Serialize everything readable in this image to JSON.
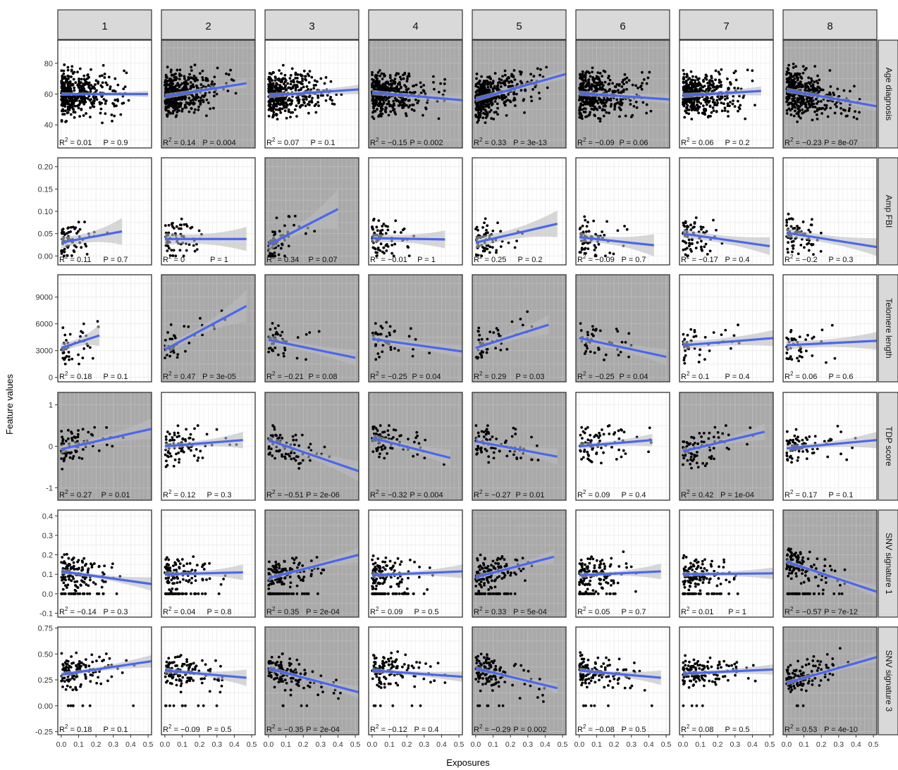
{
  "chart_data": {
    "type": "scatter",
    "facet_layout": "grid",
    "xlabel": "Exposures",
    "ylabel": "Feature values",
    "columns": [
      "1",
      "2",
      "3",
      "4",
      "5",
      "6",
      "7",
      "8"
    ],
    "x_ticks": [
      0.0,
      0.1,
      0.2,
      0.3,
      0.4,
      0.5
    ],
    "x_tick_labels": [
      "0.0",
      "0.1",
      "0.2",
      "0.3",
      "0.4",
      "0.5"
    ],
    "xlim": [
      -0.02,
      0.52
    ],
    "colors": {
      "fit_line": "#4a67f0",
      "ci_band": "#bdbdbd",
      "points": "#000000",
      "shaded_panel": "#a9a9a9",
      "strip": "#d9d9d9"
    },
    "rows": [
      {
        "label": "Age diagnosis",
        "ylim": [
          25,
          95
        ],
        "y_ticks": [
          40,
          60,
          80
        ],
        "y_tick_labels": [
          "40",
          "60",
          "80"
        ],
        "y_range": [
          30,
          90
        ],
        "y_mu": 60,
        "y_sd": 12,
        "n": 400,
        "x_concentration": 0.12,
        "zero_fraction": 0,
        "panels": [
          {
            "r2": "0.01",
            "p": "0.9",
            "shaded": false,
            "x_max": 0.5,
            "fit": [
              60,
              60
            ],
            "ci": [
              1,
              2
            ]
          },
          {
            "r2": "0.14",
            "p": "0.004",
            "shaded": true,
            "x_max": 0.47,
            "fit": [
              58.5,
              67
            ],
            "ci": [
              1.5,
              3
            ]
          },
          {
            "r2": "0.07",
            "p": "0.1",
            "shaded": false,
            "x_max": 0.52,
            "fit": [
              59,
              63
            ],
            "ci": [
              1.5,
              3
            ]
          },
          {
            "r2": "−0.15",
            "p": "0.002",
            "shaded": true,
            "x_max": 0.52,
            "fit": [
              61,
              56
            ],
            "ci": [
              1.5,
              3
            ]
          },
          {
            "r2": "0.33",
            "p": "3e-13",
            "shaded": true,
            "x_max": 0.52,
            "fit": [
              56.5,
              73
            ],
            "ci": [
              1.5,
              3
            ]
          },
          {
            "r2": "−0.09",
            "p": "0.06",
            "shaded": true,
            "x_max": 0.52,
            "fit": [
              60.5,
              56.5
            ],
            "ci": [
              1.5,
              3
            ]
          },
          {
            "r2": "0.06",
            "p": "0.2",
            "shaded": false,
            "x_max": 0.45,
            "fit": [
              59,
              62
            ],
            "ci": [
              1.5,
              3
            ]
          },
          {
            "r2": "−0.23",
            "p": "8e-07",
            "shaded": true,
            "x_max": 0.52,
            "fit": [
              62.5,
              52
            ],
            "ci": [
              1.5,
              3
            ]
          }
        ]
      },
      {
        "label": "Amp FBI",
        "ylim": [
          -0.02,
          0.22
        ],
        "y_ticks": [
          0,
          0.05,
          0.1,
          0.15,
          0.2
        ],
        "y_tick_labels": [
          "0.00",
          "0.05",
          "0.10",
          "0.15",
          "0.20"
        ],
        "y_range": [
          0,
          0.2
        ],
        "y_mu": 0.02,
        "y_sd": 0.035,
        "n": 70,
        "x_concentration": 0.08,
        "zero_fraction": 0,
        "panels": [
          {
            "r2": "0.11",
            "p": "0.7",
            "shaded": false,
            "x_max": 0.35,
            "fit": [
              0.03,
              0.055
            ],
            "ci": [
              0.01,
              0.03
            ]
          },
          {
            "r2": "0",
            "p": "1",
            "shaded": false,
            "x_max": 0.47,
            "fit": [
              0.038,
              0.038
            ],
            "ci": [
              0.01,
              0.027
            ]
          },
          {
            "r2": "0.34",
            "p": "0.07",
            "shaded": true,
            "x_max": 0.4,
            "fit": [
              0.025,
              0.105
            ],
            "ci": [
              0.01,
              0.045
            ]
          },
          {
            "r2": "−0.01",
            "p": "1",
            "shaded": false,
            "x_max": 0.42,
            "fit": [
              0.04,
              0.037
            ],
            "ci": [
              0.008,
              0.02
            ]
          },
          {
            "r2": "0.25",
            "p": "0.2",
            "shaded": false,
            "x_max": 0.47,
            "fit": [
              0.03,
              0.072
            ],
            "ci": [
              0.01,
              0.03
            ]
          },
          {
            "r2": "−0.09",
            "p": "0.7",
            "shaded": false,
            "x_max": 0.43,
            "fit": [
              0.042,
              0.024
            ],
            "ci": [
              0.008,
              0.025
            ]
          },
          {
            "r2": "−0.17",
            "p": "0.4",
            "shaded": false,
            "x_max": 0.5,
            "fit": [
              0.05,
              0.022
            ],
            "ci": [
              0.008,
              0.02
            ]
          },
          {
            "r2": "−0.2",
            "p": "0.3",
            "shaded": false,
            "x_max": 0.52,
            "fit": [
              0.052,
              0.02
            ],
            "ci": [
              0.008,
              0.02
            ]
          }
        ]
      },
      {
        "label": "Telomere length",
        "ylim": [
          -500,
          11500
        ],
        "y_ticks": [
          0,
          3000,
          6000,
          9000
        ],
        "y_tick_labels": [
          "0",
          "3000",
          "6000",
          "9000"
        ],
        "y_range": [
          1500,
          11000
        ],
        "y_mu": 3500,
        "y_sd": 1800,
        "n": 45,
        "x_concentration": 0.1,
        "zero_fraction": 0,
        "panels": [
          {
            "r2": "0.18",
            "p": "0.1",
            "shaded": false,
            "x_max": 0.22,
            "fit": [
              3300,
              4700
            ],
            "ci": [
              400,
              1200
            ]
          },
          {
            "r2": "0.47",
            "p": "3e-05",
            "shaded": true,
            "x_max": 0.47,
            "fit": [
              3100,
              8000
            ],
            "ci": [
              400,
              1800
            ]
          },
          {
            "r2": "−0.21",
            "p": "0.08",
            "shaded": true,
            "x_max": 0.5,
            "fit": [
              4200,
              2200
            ],
            "ci": [
              400,
              900
            ]
          },
          {
            "r2": "−0.25",
            "p": "0.04",
            "shaded": true,
            "x_max": 0.52,
            "fit": [
              4300,
              2900
            ],
            "ci": [
              400,
              700
            ]
          },
          {
            "r2": "0.29",
            "p": "0.03",
            "shaded": true,
            "x_max": 0.42,
            "fit": [
              3300,
              5900
            ],
            "ci": [
              400,
              1100
            ]
          },
          {
            "r2": "−0.25",
            "p": "0.04",
            "shaded": true,
            "x_max": 0.5,
            "fit": [
              4400,
              2300
            ],
            "ci": [
              400,
              900
            ]
          },
          {
            "r2": "0.1",
            "p": "0.4",
            "shaded": false,
            "x_max": 0.52,
            "fit": [
              3600,
              4400
            ],
            "ci": [
              400,
              900
            ]
          },
          {
            "r2": "0.06",
            "p": "0.6",
            "shaded": false,
            "x_max": 0.52,
            "fit": [
              3600,
              4100
            ],
            "ci": [
              400,
              1000
            ]
          }
        ]
      },
      {
        "label": "TDP score",
        "ylim": [
          -1.3,
          1.3
        ],
        "y_ticks": [
          -1,
          0,
          1
        ],
        "y_tick_labels": [
          "-1",
          "0",
          "1"
        ],
        "y_range": [
          -1.1,
          0.5
        ],
        "y_mu": 0.05,
        "y_sd": 0.35,
        "n": 80,
        "x_concentration": 0.12,
        "zero_fraction": 0,
        "panels": [
          {
            "r2": "0.27",
            "p": "0.01",
            "shaded": true,
            "x_max": 0.52,
            "fit": [
              -0.07,
              0.42
            ],
            "ci": [
              0.08,
              0.25
            ]
          },
          {
            "r2": "0.12",
            "p": "0.3",
            "shaded": false,
            "x_max": 0.45,
            "fit": [
              0.0,
              0.15
            ],
            "ci": [
              0.06,
              0.2
            ]
          },
          {
            "r2": "−0.51",
            "p": "2e-06",
            "shaded": true,
            "x_max": 0.52,
            "fit": [
              0.15,
              -0.6
            ],
            "ci": [
              0.08,
              0.25
            ]
          },
          {
            "r2": "−0.32",
            "p": "0.004",
            "shaded": true,
            "x_max": 0.45,
            "fit": [
              0.2,
              -0.28
            ],
            "ci": [
              0.08,
              0.2
            ]
          },
          {
            "r2": "−0.27",
            "p": "0.01",
            "shaded": true,
            "x_max": 0.47,
            "fit": [
              0.12,
              -0.25
            ],
            "ci": [
              0.06,
              0.2
            ]
          },
          {
            "r2": "0.09",
            "p": "0.4",
            "shaded": false,
            "x_max": 0.42,
            "fit": [
              0.0,
              0.15
            ],
            "ci": [
              0.06,
              0.15
            ]
          },
          {
            "r2": "0.42",
            "p": "1e-04",
            "shaded": true,
            "x_max": 0.47,
            "fit": [
              -0.12,
              0.35
            ],
            "ci": [
              0.06,
              0.2
            ]
          },
          {
            "r2": "0.17",
            "p": "0.1",
            "shaded": false,
            "x_max": 0.52,
            "fit": [
              -0.05,
              0.15
            ],
            "ci": [
              0.06,
              0.2
            ]
          }
        ]
      },
      {
        "label": "SNV signature 1",
        "ylim": [
          -0.12,
          0.43
        ],
        "y_ticks": [
          -0.1,
          0,
          0.1,
          0.2,
          0.3,
          0.4
        ],
        "y_tick_labels": [
          "-0.1",
          "0.0",
          "0.1",
          "0.2",
          "0.3",
          "0.4"
        ],
        "y_range": [
          0,
          0.3
        ],
        "y_mu": 0.1,
        "y_sd": 0.07,
        "n": 160,
        "x_concentration": 0.1,
        "zero_fraction": 0.25,
        "panels": [
          {
            "r2": "−0.14",
            "p": "0.3",
            "shaded": false,
            "x_max": 0.52,
            "fit": [
              0.115,
              0.05
            ],
            "ci": [
              0.01,
              0.035
            ]
          },
          {
            "r2": "0.04",
            "p": "0.8",
            "shaded": false,
            "x_max": 0.45,
            "fit": [
              0.1,
              0.11
            ],
            "ci": [
              0.01,
              0.04
            ]
          },
          {
            "r2": "0.35",
            "p": "2e-04",
            "shaded": true,
            "x_max": 0.52,
            "fit": [
              0.08,
              0.2
            ],
            "ci": [
              0.01,
              0.04
            ]
          },
          {
            "r2": "0.09",
            "p": "0.5",
            "shaded": false,
            "x_max": 0.52,
            "fit": [
              0.095,
              0.115
            ],
            "ci": [
              0.01,
              0.035
            ]
          },
          {
            "r2": "0.33",
            "p": "5e-04",
            "shaded": true,
            "x_max": 0.45,
            "fit": [
              0.085,
              0.19
            ],
            "ci": [
              0.01,
              0.035
            ]
          },
          {
            "r2": "0.05",
            "p": "0.7",
            "shaded": false,
            "x_max": 0.47,
            "fit": [
              0.095,
              0.115
            ],
            "ci": [
              0.01,
              0.04
            ]
          },
          {
            "r2": "0.01",
            "p": "1",
            "shaded": false,
            "x_max": 0.52,
            "fit": [
              0.1,
              0.105
            ],
            "ci": [
              0.01,
              0.03
            ]
          },
          {
            "r2": "−0.57",
            "p": "7e-12",
            "shaded": true,
            "x_max": 0.52,
            "fit": [
              0.165,
              0.01
            ],
            "ci": [
              0.01,
              0.03
            ]
          }
        ]
      },
      {
        "label": "SNV signature 3",
        "ylim": [
          -0.28,
          0.76
        ],
        "y_ticks": [
          -0.25,
          0,
          0.25,
          0.5,
          0.75
        ],
        "y_tick_labels": [
          "-0.25",
          "0.00",
          "0.25",
          "0.50",
          "0.75"
        ],
        "y_range": [
          0,
          0.7
        ],
        "y_mu": 0.32,
        "y_sd": 0.13,
        "n": 130,
        "x_concentration": 0.12,
        "zero_fraction": 0.05,
        "panels": [
          {
            "r2": "0.18",
            "p": "0.1",
            "shaded": false,
            "x_max": 0.52,
            "fit": [
              0.3,
              0.43
            ],
            "ci": [
              0.02,
              0.06
            ]
          },
          {
            "r2": "−0.09",
            "p": "0.5",
            "shaded": false,
            "x_max": 0.47,
            "fit": [
              0.34,
              0.27
            ],
            "ci": [
              0.02,
              0.08
            ]
          },
          {
            "r2": "−0.35",
            "p": "2e-04",
            "shaded": true,
            "x_max": 0.52,
            "fit": [
              0.36,
              0.13
            ],
            "ci": [
              0.02,
              0.06
            ]
          },
          {
            "r2": "−0.12",
            "p": "0.4",
            "shaded": false,
            "x_max": 0.52,
            "fit": [
              0.34,
              0.28
            ],
            "ci": [
              0.02,
              0.05
            ]
          },
          {
            "r2": "−0.29",
            "p": "0.002",
            "shaded": true,
            "x_max": 0.47,
            "fit": [
              0.36,
              0.17
            ],
            "ci": [
              0.02,
              0.05
            ]
          },
          {
            "r2": "−0.08",
            "p": "0.5",
            "shaded": false,
            "x_max": 0.47,
            "fit": [
              0.34,
              0.27
            ],
            "ci": [
              0.02,
              0.07
            ]
          },
          {
            "r2": "0.08",
            "p": "0.5",
            "shaded": false,
            "x_max": 0.52,
            "fit": [
              0.31,
              0.35
            ],
            "ci": [
              0.02,
              0.05
            ]
          },
          {
            "r2": "0.53",
            "p": "4e-10",
            "shaded": true,
            "x_max": 0.52,
            "fit": [
              0.22,
              0.47
            ],
            "ci": [
              0.02,
              0.05
            ]
          }
        ]
      }
    ]
  }
}
